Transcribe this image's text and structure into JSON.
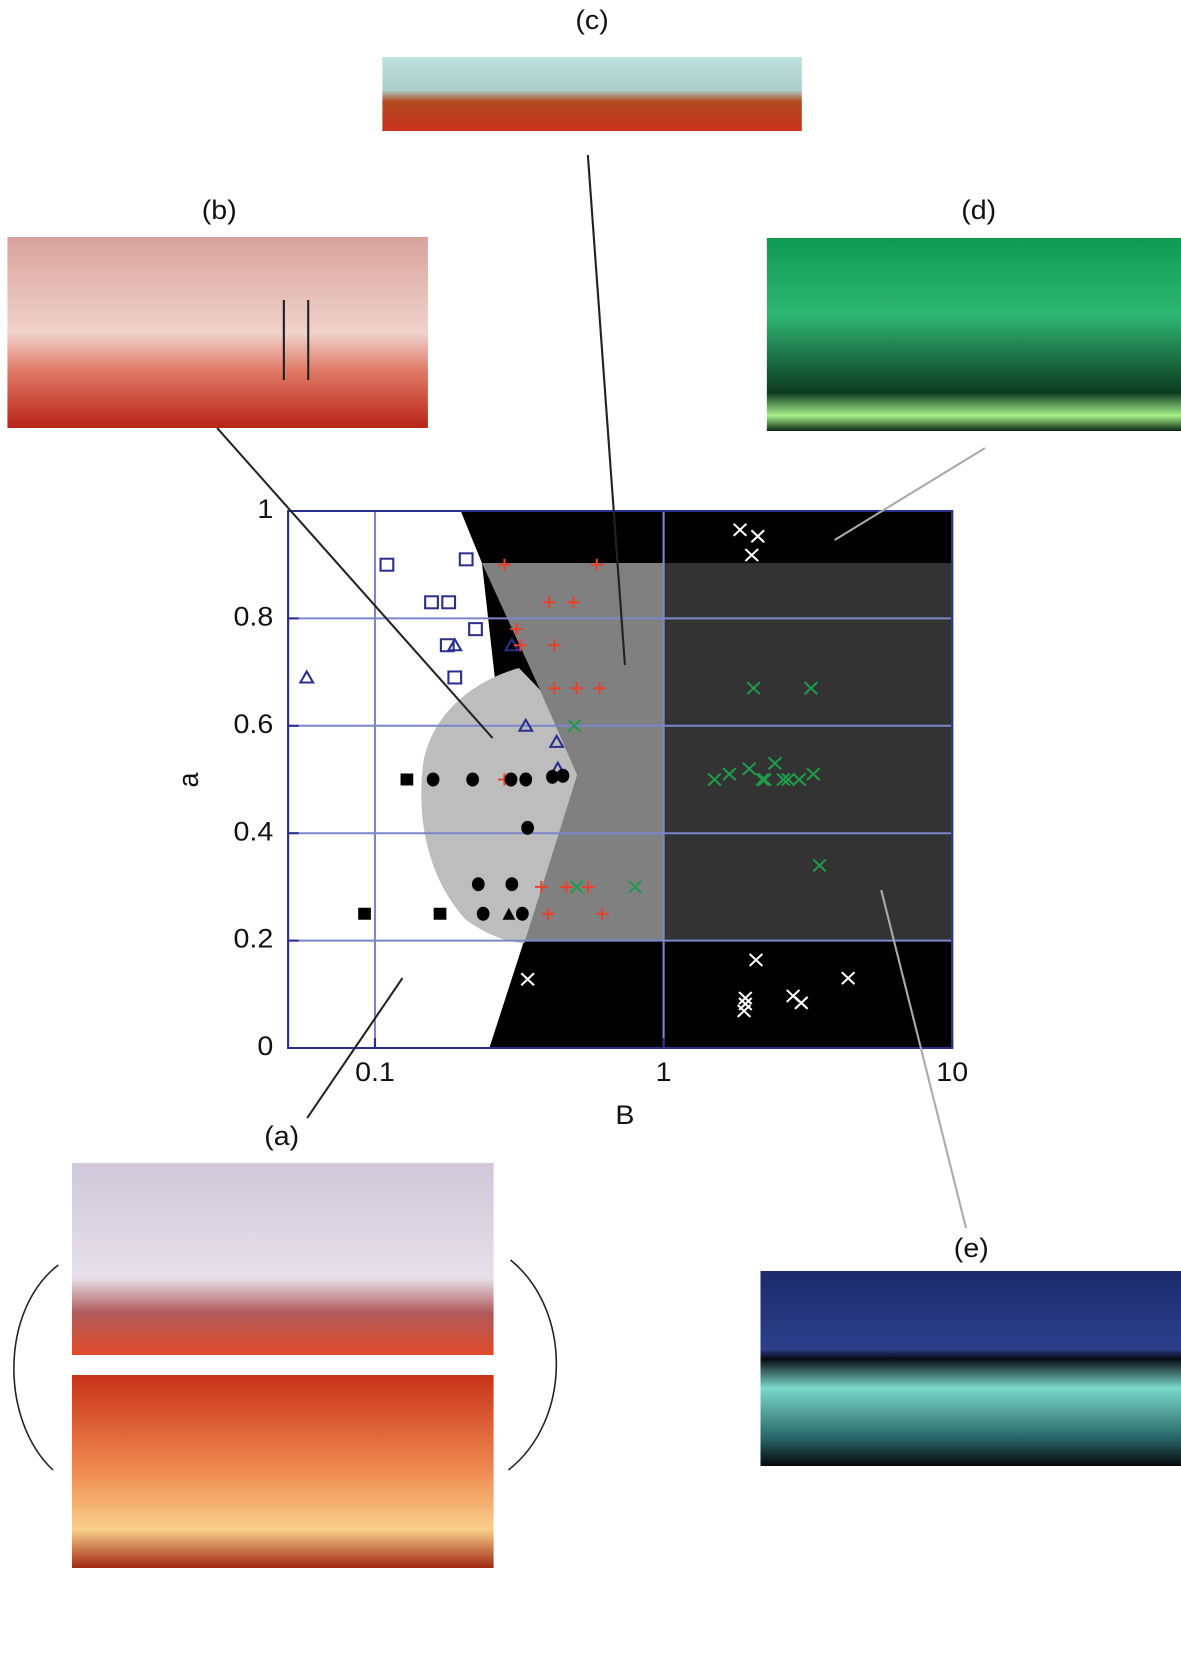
{
  "chart_data": {
    "type": "scatter",
    "xlabel": "B",
    "ylabel": "a",
    "log_x": true,
    "grid": true,
    "xlim": [
      0.05,
      10
    ],
    "ylim": [
      0,
      1
    ],
    "xticks": [
      0.1,
      1,
      10
    ],
    "yticks": [
      0,
      0.2,
      0.4,
      0.6,
      0.8,
      1
    ],
    "series": [
      {
        "marker": "open-square",
        "color": "#2b2f8c",
        "x": [
          0.11,
          0.207,
          0.157,
          0.18,
          0.223,
          0.178,
          0.189
        ],
        "values": [
          0.9,
          0.91,
          0.83,
          0.83,
          0.78,
          0.75,
          0.69
        ]
      },
      {
        "marker": "open-triangle",
        "color": "#2b2f8c",
        "x": [
          0.058,
          0.189,
          0.298,
          0.333,
          0.426,
          0.43
        ],
        "values": [
          0.69,
          0.75,
          0.75,
          0.6,
          0.57,
          0.52
        ]
      },
      {
        "marker": "plus",
        "color": "#e8412c",
        "x": [
          0.281,
          0.587,
          0.401,
          0.487,
          0.309,
          0.319,
          0.418,
          0.418,
          0.5,
          0.6,
          0.281,
          0.377,
          0.46,
          0.548,
          0.398,
          0.612
        ],
        "values": [
          0.9,
          0.9,
          0.83,
          0.83,
          0.78,
          0.75,
          0.75,
          0.67,
          0.67,
          0.67,
          0.5,
          0.3,
          0.3,
          0.3,
          0.25,
          0.25
        ]
      },
      {
        "marker": "cross",
        "color": "#1f9a4a",
        "x": [
          0.49,
          0.796,
          0.5,
          2.05,
          3.24,
          3.47,
          1.5,
          1.69,
          1.98,
          2.43,
          2.2,
          2.7,
          3.3,
          2.95,
          2.6,
          2.24
        ],
        "values": [
          0.6,
          0.3,
          0.3,
          0.67,
          0.67,
          0.34,
          0.5,
          0.51,
          0.52,
          0.53,
          0.5,
          0.5,
          0.51,
          0.5,
          0.5,
          0.5
        ]
      },
      {
        "marker": "cross",
        "color": "#ffffff",
        "x": [
          1.84,
          2.12,
          2.02,
          0.338,
          2.09,
          1.92,
          1.9,
          2.81,
          3.0,
          4.36,
          1.92
        ],
        "values": [
          0.965,
          0.953,
          0.918,
          0.128,
          0.164,
          0.093,
          0.069,
          0.097,
          0.084,
          0.13,
          0.082
        ]
      },
      {
        "marker": "circle",
        "color": "#000000",
        "x": [
          0.159,
          0.218,
          0.296,
          0.333,
          0.412,
          0.448,
          0.338,
          0.228,
          0.298,
          0.237,
          0.324
        ],
        "values": [
          0.5,
          0.5,
          0.5,
          0.5,
          0.505,
          0.507,
          0.41,
          0.305,
          0.305,
          0.25,
          0.25
        ]
      },
      {
        "marker": "square",
        "color": "#000000",
        "x": [
          0.129,
          0.092,
          0.168
        ],
        "values": [
          0.5,
          0.25,
          0.25
        ]
      },
      {
        "marker": "triangle",
        "color": "#000000",
        "x": [
          0.291
        ],
        "values": [
          0.25
        ]
      }
    ]
  },
  "panel_labels": [
    "(a)",
    "(b)",
    "(c)",
    "(d)",
    "(e)"
  ]
}
